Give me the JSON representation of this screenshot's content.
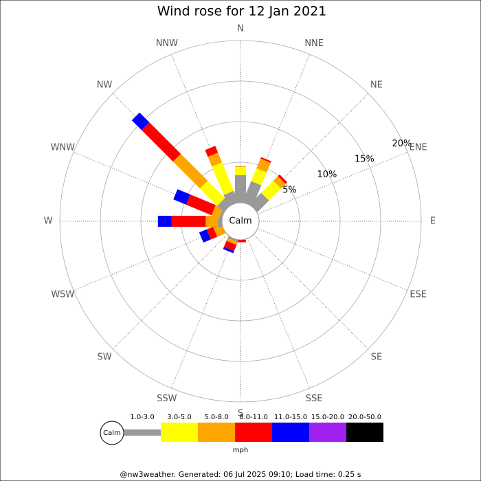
{
  "chart_data": {
    "type": "rose",
    "title": "Wind rose for 12 Jan 2021",
    "categories": [
      "N",
      "NNE",
      "NE",
      "ENE",
      "E",
      "ESE",
      "SE",
      "SSE",
      "S",
      "SSW",
      "SW",
      "WSW",
      "W",
      "WNW",
      "NW",
      "NNW"
    ],
    "center_label": "Calm",
    "unit_label": "mph",
    "footer": "@nw3weather. Generated: 06 Jul 2025 09:10; Load time: 0.25 s",
    "ylim": [
      0,
      20
    ],
    "yticks": [
      {
        "value": 5,
        "label": "5%"
      },
      {
        "value": 10,
        "label": "10%"
      },
      {
        "value": 15,
        "label": "15%"
      },
      {
        "value": 20,
        "label": "20%"
      }
    ],
    "series": [
      {
        "name": "1.0-3.0",
        "color": "#999999",
        "values": [
          3.4,
          2.8,
          2.0,
          0,
          0,
          0,
          0,
          0,
          0,
          0.2,
          0,
          0,
          0.5,
          0.3,
          1.1,
          1.5
        ]
      },
      {
        "name": "3.0-5.0",
        "color": "#ffff00",
        "values": [
          1.0,
          1.7,
          2.1,
          0,
          0,
          0,
          0,
          0,
          0,
          0,
          0,
          0,
          0,
          0,
          3.0,
          3.8
        ]
      },
      {
        "name": "5.0-8.0",
        "color": "#ffa500",
        "values": [
          0.1,
          1.3,
          0.8,
          0,
          0,
          0,
          0,
          0,
          0,
          0.4,
          0,
          1.1,
          1.5,
          1.0,
          4.7,
          1.3
        ]
      },
      {
        "name": "8.0-11.0",
        "color": "#ff0000",
        "values": [
          0,
          0.2,
          0.3,
          0,
          0,
          0,
          0,
          0,
          0.3,
          0.8,
          0,
          0.85,
          4.2,
          3.4,
          5.5,
          0.9
        ]
      },
      {
        "name": "11.0-15.0",
        "color": "#0000ff",
        "values": [
          0,
          0,
          0,
          0,
          0,
          0,
          0,
          0,
          0,
          0.3,
          0,
          1.0,
          1.7,
          1.7,
          1.7,
          0
        ]
      },
      {
        "name": "15.0-20.0",
        "color": "#a020f0",
        "values": [
          0,
          0,
          0,
          0,
          0,
          0,
          0,
          0,
          0,
          0,
          0,
          0,
          0,
          0,
          0,
          0
        ]
      },
      {
        "name": "20.0-50.0",
        "color": "#000000",
        "values": [
          0,
          0,
          0,
          0,
          0,
          0,
          0,
          0,
          0,
          0,
          0,
          0,
          0,
          0,
          0,
          0
        ]
      }
    ]
  }
}
